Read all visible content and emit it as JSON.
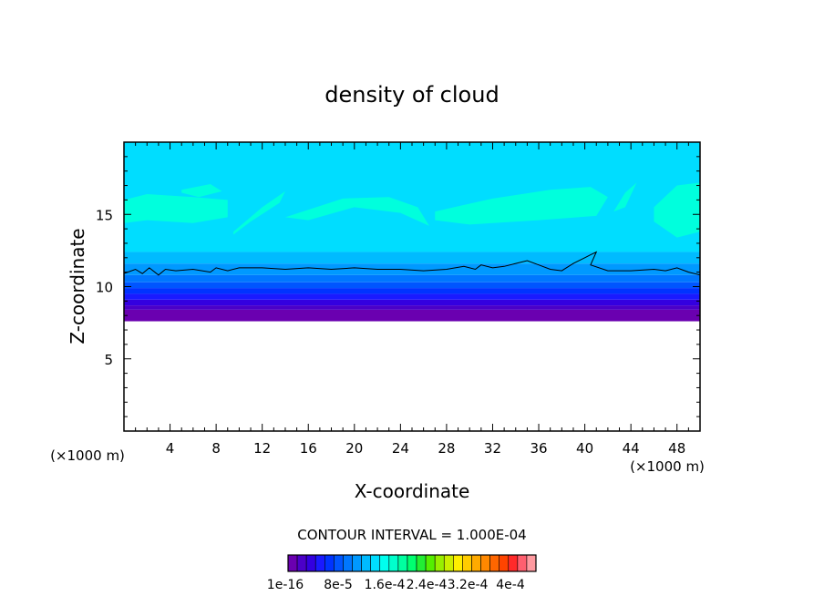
{
  "chart_data": {
    "type": "heatmap",
    "title": "density of cloud",
    "xlabel": "X-coordinate",
    "ylabel": "Z-coordinate",
    "x_unit_label": "(×1000 m)",
    "y_unit_label": "(×1000 m)",
    "xlim": [
      0,
      50
    ],
    "ylim": [
      0,
      20
    ],
    "x_ticks": [
      4,
      8,
      12,
      16,
      20,
      24,
      28,
      32,
      36,
      40,
      44,
      48
    ],
    "y_ticks": [
      5,
      10,
      15
    ],
    "contour_interval_text": "CONTOUR INTERVAL = 1.000E-04",
    "colorbar": {
      "colors": [
        "#6a00b0",
        "#4b00c8",
        "#3300e0",
        "#1a1aff",
        "#0033ff",
        "#0055ff",
        "#0077ff",
        "#0099ff",
        "#00bbff",
        "#00ddff",
        "#00ffee",
        "#00ffcc",
        "#00ffa0",
        "#00ff70",
        "#22ee33",
        "#55ee00",
        "#99ee00",
        "#ccee00",
        "#ffee00",
        "#ffcc00",
        "#ffaa00",
        "#ff8800",
        "#ff6600",
        "#ff4400",
        "#ff2a2a",
        "#ff5f6f",
        "#ff9aa0"
      ],
      "labels": [
        "1e-16",
        "8e-5",
        "1.6e-4",
        "2.4e-4",
        "3.2e-4",
        "4e-4"
      ]
    },
    "field_bands": [
      {
        "z_min": 7.6,
        "z_max": 8.4,
        "color": "#6a00b0"
      },
      {
        "z_min": 8.4,
        "z_max": 8.7,
        "color": "#4b00c8"
      },
      {
        "z_min": 8.7,
        "z_max": 9.1,
        "color": "#3300e0"
      },
      {
        "z_min": 9.1,
        "z_max": 9.5,
        "color": "#1a1aff"
      },
      {
        "z_min": 9.5,
        "z_max": 9.9,
        "color": "#0033ff"
      },
      {
        "z_min": 9.9,
        "z_max": 10.3,
        "color": "#0055ff"
      },
      {
        "z_min": 10.3,
        "z_max": 10.8,
        "color": "#0077ff"
      },
      {
        "z_min": 10.8,
        "z_max": 11.6,
        "color": "#0099ff"
      },
      {
        "z_min": 11.6,
        "z_max": 12.4,
        "color": "#00bbff"
      },
      {
        "z_min": 12.4,
        "z_max": 20,
        "color": "#00ddff"
      }
    ],
    "high_patches_color": "#00ffdd",
    "high_patches": [
      {
        "x": [
          0,
          2,
          6,
          9,
          9,
          6,
          2,
          0
        ],
        "z": [
          16.0,
          16.4,
          16.2,
          16.0,
          14.8,
          14.4,
          14.6,
          14.4
        ]
      },
      {
        "x": [
          5,
          7.5,
          8.5,
          6.5,
          5
        ],
        "z": [
          16.7,
          17.1,
          16.6,
          16.2,
          16.5
        ]
      },
      {
        "x": [
          9.5,
          12,
          14,
          13.5,
          11,
          9.5
        ],
        "z": [
          13.8,
          15.5,
          16.6,
          15.8,
          14.5,
          13.6
        ]
      },
      {
        "x": [
          14,
          19,
          23,
          25.5,
          26.5,
          24,
          20,
          16
        ],
        "z": [
          14.8,
          16.1,
          16.2,
          15.5,
          14.2,
          15.1,
          15.5,
          14.6
        ]
      },
      {
        "x": [
          27,
          32,
          37,
          40.5,
          42,
          41,
          36,
          30,
          27
        ],
        "z": [
          15.2,
          16.1,
          16.7,
          16.9,
          16.2,
          14.9,
          14.6,
          14.3,
          14.6
        ]
      },
      {
        "x": [
          43.5,
          44.5,
          43.5,
          42.5
        ],
        "z": [
          15.5,
          17.2,
          16.5,
          15.2
        ]
      },
      {
        "x": [
          46,
          48,
          50,
          50,
          48,
          46
        ],
        "z": [
          15.5,
          17.0,
          17.2,
          13.8,
          13.4,
          14.5
        ]
      },
      {
        "x": [
          31,
          34,
          36
        ],
        "z": [
          15.2,
          15.0,
          16.0
        ]
      }
    ],
    "contour_line": {
      "x": [
        0,
        1,
        1.6,
        2.2,
        3,
        3.6,
        4.5,
        6,
        7.5,
        8,
        9,
        10,
        12,
        14,
        16,
        18,
        20,
        22,
        24,
        26,
        28,
        29.5,
        30.5,
        31,
        32,
        33,
        34,
        35,
        36,
        37,
        38,
        39,
        40,
        40.5,
        41,
        40.5,
        42,
        44,
        46,
        47,
        48,
        49,
        50
      ],
      "z": [
        10.9,
        11.2,
        10.9,
        11.3,
        10.8,
        11.2,
        11.1,
        11.2,
        11.0,
        11.3,
        11.1,
        11.3,
        11.3,
        11.2,
        11.3,
        11.2,
        11.3,
        11.2,
        11.2,
        11.1,
        11.2,
        11.4,
        11.2,
        11.5,
        11.3,
        11.4,
        11.6,
        11.8,
        11.5,
        11.2,
        11.1,
        11.6,
        12.0,
        12.2,
        12.4,
        11.5,
        11.1,
        11.1,
        11.2,
        11.1,
        11.3,
        11.0,
        10.8
      ]
    }
  }
}
